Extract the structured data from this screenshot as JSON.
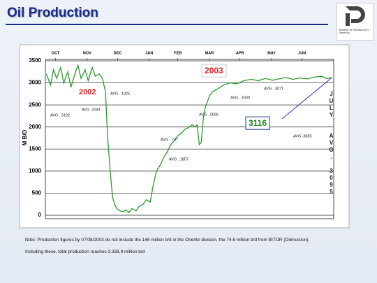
{
  "header": {
    "title": "Oil Production",
    "logo_text": "Ministerio de Planificación y Desarrollo"
  },
  "chart_data": {
    "type": "line",
    "ylabel": "M B/D",
    "xlim": [
      5,
      288
    ],
    "xticks": [
      {
        "value": 15,
        "label": "OCT"
      },
      {
        "value": 46,
        "label": "NOV"
      },
      {
        "value": 76,
        "label": "DEC"
      },
      {
        "value": 107,
        "label": "JAN"
      },
      {
        "value": 135,
        "label": "FEB"
      },
      {
        "value": 166,
        "label": "MAR"
      },
      {
        "value": 196,
        "label": "APR"
      },
      {
        "value": 227,
        "label": "MAY"
      },
      {
        "value": 257,
        "label": "JUN"
      }
    ],
    "ylim": [
      0,
      3500
    ],
    "yticks": [
      0,
      500,
      1000,
      1500,
      2000,
      2500,
      3000,
      3500
    ],
    "grid": true,
    "series": [
      {
        "name": "Oil production",
        "color": "#2a9a2a",
        "x": [
          6,
          10,
          13,
          16,
          20,
          23,
          27,
          30,
          34,
          37,
          40,
          44,
          47,
          51,
          54,
          58,
          61,
          64,
          66,
          69,
          71,
          73,
          75,
          78,
          81,
          84,
          87,
          90,
          94,
          97,
          101,
          104,
          108,
          111,
          114,
          118,
          121,
          125,
          128,
          132,
          135,
          138,
          142,
          145,
          149,
          152,
          154,
          156,
          158,
          160,
          162,
          166,
          169,
          173,
          180,
          186,
          193,
          200,
          207,
          214,
          221,
          228,
          234,
          241,
          248,
          255,
          262,
          269,
          276,
          281,
          286
        ],
        "values": [
          3200,
          2950,
          3300,
          3100,
          3350,
          3000,
          3250,
          2900,
          3200,
          3400,
          3100,
          3300,
          3050,
          3350,
          3150,
          3200,
          3100,
          2800,
          1800,
          900,
          400,
          250,
          150,
          100,
          80,
          120,
          60,
          150,
          100,
          200,
          250,
          350,
          300,
          700,
          1000,
          1150,
          1300,
          1450,
          1600,
          1700,
          1800,
          1850,
          1950,
          1980,
          2050,
          2000,
          2050,
          1600,
          1650,
          2200,
          2450,
          2700,
          2800,
          2850,
          2950,
          3000,
          2980,
          3050,
          3080,
          3050,
          3100,
          3060,
          3090,
          3120,
          3080,
          3110,
          3090,
          3130,
          3150,
          3100,
          3116
        ]
      }
    ],
    "annotations": [
      "2002",
      "2003",
      "3116",
      "AVG . 3192",
      "AVG .3193",
      "AVG   . 1025",
      "AVG   . 737",
      "AVG   . 1857",
      "AVG . 2696",
      "AVG . 3030",
      "AVG . 3071",
      "AVG  .3085"
    ],
    "side_label": [
      "JULY",
      "AVG. 3095"
    ]
  },
  "notes": [
    "Note: Production figures by 07/08/2003 do not include the 146 million b/d in the Oriente division, the 74.6 million b/d  from BITOR (Orimulsion).",
    "Including these, total production reaches 3.338,9 million b/d"
  ]
}
